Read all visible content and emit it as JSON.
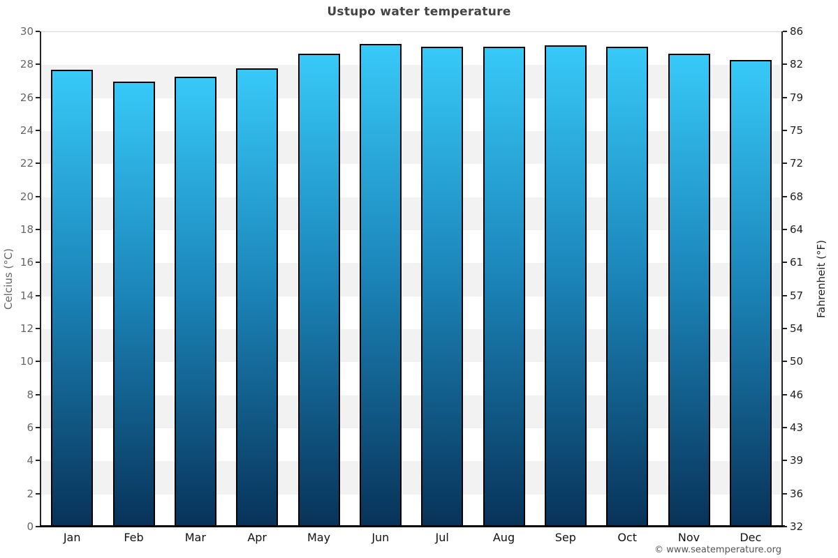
{
  "chart_data": {
    "type": "bar",
    "title": "Ustupo water temperature",
    "categories": [
      "Jan",
      "Feb",
      "Mar",
      "Apr",
      "May",
      "Jun",
      "Jul",
      "Aug",
      "Sep",
      "Oct",
      "Nov",
      "Dec"
    ],
    "values": [
      27.7,
      27.0,
      27.3,
      27.8,
      28.7,
      29.3,
      29.1,
      29.1,
      29.2,
      29.1,
      28.7,
      28.3
    ],
    "unit": "°C",
    "ylim": [
      0,
      30
    ],
    "left_axis": {
      "label": "Celcius (°C)",
      "ticks": [
        30,
        28,
        26,
        24,
        22,
        20,
        18,
        16,
        14,
        12,
        10,
        8,
        6,
        4,
        2,
        0
      ]
    },
    "right_axis": {
      "label": "Fahrenheit (°F)",
      "ticks": [
        86,
        82,
        79,
        75,
        72,
        68,
        64,
        61,
        57,
        54,
        50,
        46,
        43,
        39,
        36,
        32
      ]
    },
    "grid": "alternating horizontal bands every 2 degrees",
    "legend": "none",
    "footer": "© www.seatemperature.org",
    "colors": {
      "bar_gradient_top": "#37c9f8",
      "bar_gradient_mid": "#1b84b8",
      "bar_gradient_bottom": "#083258",
      "bar_border": "#000000",
      "band_main": "#ffffff",
      "band_alt": "#f2f2f2",
      "axis_line": "#222222",
      "baseline": "#000000",
      "title_text": "#444444",
      "left_tick_text": "#666666",
      "right_tick_text": "#222222",
      "month_text": "#111111",
      "footer_text": "#555555"
    }
  }
}
